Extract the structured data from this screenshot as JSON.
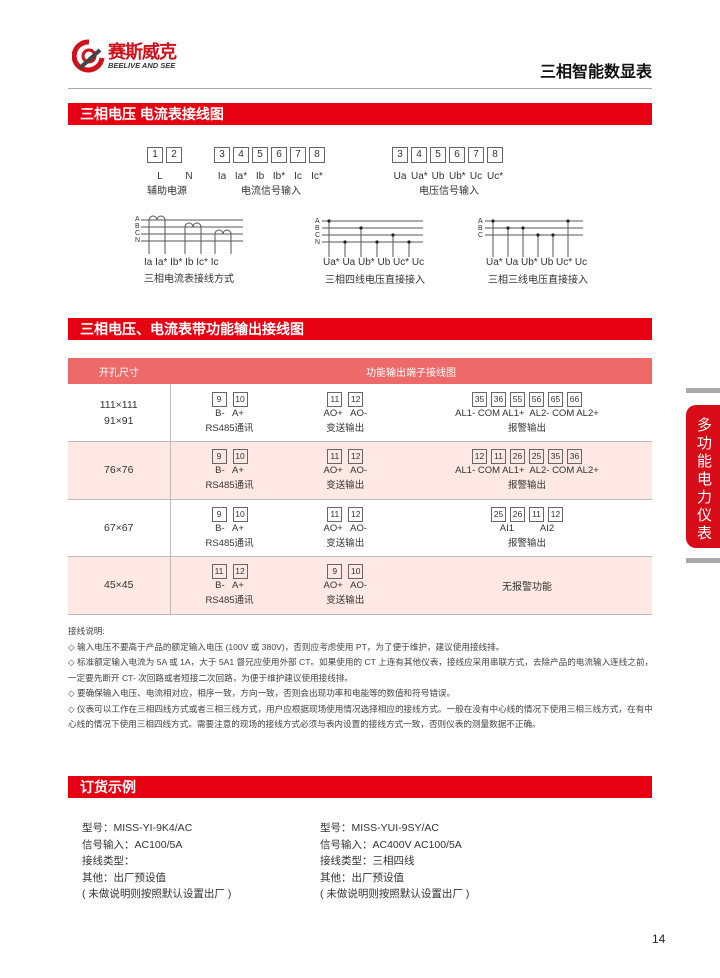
{
  "header": {
    "logo_cn": "赛斯威克",
    "logo_en": "BEELIVE AND SEE",
    "title": "三相智能数显表"
  },
  "section1": {
    "title": "三相电压 电流表接线图",
    "aux": {
      "terms": [
        "1",
        "2"
      ],
      "pins": [
        "L",
        "N"
      ],
      "caption": "辅助电源"
    },
    "current": {
      "terms": [
        "3",
        "4",
        "5",
        "6",
        "7",
        "8"
      ],
      "pins": [
        "Ia",
        "Ia*",
        "Ib",
        "Ib*",
        "Ic",
        "Ic*"
      ],
      "caption": "电流信号输入"
    },
    "voltage": {
      "terms": [
        "3",
        "4",
        "5",
        "6",
        "7",
        "8"
      ],
      "pins": [
        "Ua",
        "Ua*",
        "Ub",
        "Ub*",
        "Uc",
        "Uc*"
      ],
      "caption": "电压信号输入"
    },
    "diagrams": [
      {
        "phases": [
          "A",
          "B",
          "C",
          "N"
        ],
        "pins": "Ia  Ia* Ib* Ib  Ic* Ic",
        "caption": "三相电流表接线方式"
      },
      {
        "phases": [
          "A",
          "B",
          "C",
          "N"
        ],
        "pins": "Ua* Ua Ub* Ub Uc* Uc",
        "caption": "三相四线电压直接接入"
      },
      {
        "phases": [
          "A",
          "B",
          "C"
        ],
        "pins": "Ua* Ua Ub* Ub Uc* Uc",
        "caption": "三相三线电压直接接入"
      }
    ]
  },
  "section2": {
    "title": "三相电压、电流表带功能输出接线图",
    "headers": [
      "开孔尺寸",
      "功能输出端子接线图"
    ],
    "rows": [
      {
        "size": [
          "111×111",
          "91×91"
        ],
        "rs485": {
          "terms": [
            "9",
            "10"
          ],
          "pins": "B-   A+",
          "caption": "RS485通讯"
        },
        "ao": {
          "terms": [
            "11",
            "12"
          ],
          "pins": "AO+   AO-",
          "caption": "变送输出"
        },
        "alarm": {
          "terms": [
            "35",
            "36",
            "55",
            "56",
            "65",
            "66"
          ],
          "pins": "AL1- COM AL1+  AL2- COM AL2+",
          "caption": "报警输出"
        }
      },
      {
        "size": [
          "76×76"
        ],
        "rs485": {
          "terms": [
            "9",
            "10"
          ],
          "pins": "B-   A+",
          "caption": "RS485通讯"
        },
        "ao": {
          "terms": [
            "11",
            "12"
          ],
          "pins": "AO+   AO-",
          "caption": "变送输出"
        },
        "alarm": {
          "terms": [
            "12",
            "11",
            "26",
            "25",
            "35",
            "36"
          ],
          "pins": "AL1- COM AL1+  AL2- COM AL2+",
          "caption": "报警输出"
        }
      },
      {
        "size": [
          "67×67"
        ],
        "rs485": {
          "terms": [
            "9",
            "10"
          ],
          "pins": "B-   A+",
          "caption": "RS485通讯"
        },
        "ao": {
          "terms": [
            "11",
            "12"
          ],
          "pins": "AO+   AO-",
          "caption": "变送输出"
        },
        "alarm": {
          "terms": [
            "25",
            "26",
            "11",
            "12"
          ],
          "pins": "AI1          AI2",
          "caption": "报警输出"
        }
      },
      {
        "size": [
          "45×45"
        ],
        "rs485": {
          "terms": [
            "11",
            "12"
          ],
          "pins": "B-   A+",
          "caption": "RS485通讯"
        },
        "ao": {
          "terms": [
            "9",
            "10"
          ],
          "pins": "AO+   AO-",
          "caption": "变送输出"
        },
        "alarm": {
          "none": "无报警功能"
        }
      }
    ]
  },
  "notes": {
    "title": "接线说明:",
    "items": [
      "◇ 输入电压不要高于产品的额定输入电压 (100V 或 380V)，否则应考虑使用 PT，为了便于维护，建议使用接线排。",
      "◇ 标准额定输入电流为 5A 或 1A，大于 5A1 督兄应使用外部 CT。如果使用的 CT 上连有其他仪表，接线应采用串联方式，去除产品的电流输入连线之前，一定要先断开 CT- 次回路或者短接二次回路，为便于维护建议使用接线排。",
      "◇ 要确保输入电压、电流相对应，相序一致，方向一致，否则会出现功率和电能等的数值和符号错误。",
      "◇ 仪表可以工作在三相四线方式或者三相三线方式，用户应根据现场使用情况选择相应的接线方式。一般在没有中心线的情况下使用三相三线方式，在有中心线的情况下使用三相四线方式。需要注意的现场的接线方式必须与表内设置的接线方式一致，否则仪表的测量数据不正确。"
    ]
  },
  "section3": {
    "title": "订货示例",
    "examples": [
      [
        "型号：MISS-YI-9K4/AC",
        "信号输入：AC100/5A",
        "接线类型：",
        "其他：出厂预设值",
        "( 未做说明则按照默认设置出厂 )"
      ],
      [
        "型号：MISS-YUI-9SY/AC",
        "信号输入：AC400V   AC100/5A",
        "接线类型：三相四线",
        "其他：出厂预设值",
        "( 未做说明则按照默认设置出厂 )"
      ]
    ]
  },
  "side_tab": "多功能电力仪表",
  "page_number": "14",
  "colors": {
    "brand_red": "#e60012",
    "table_header": "#ee6a6a",
    "row_alt": "#fde8e3"
  }
}
